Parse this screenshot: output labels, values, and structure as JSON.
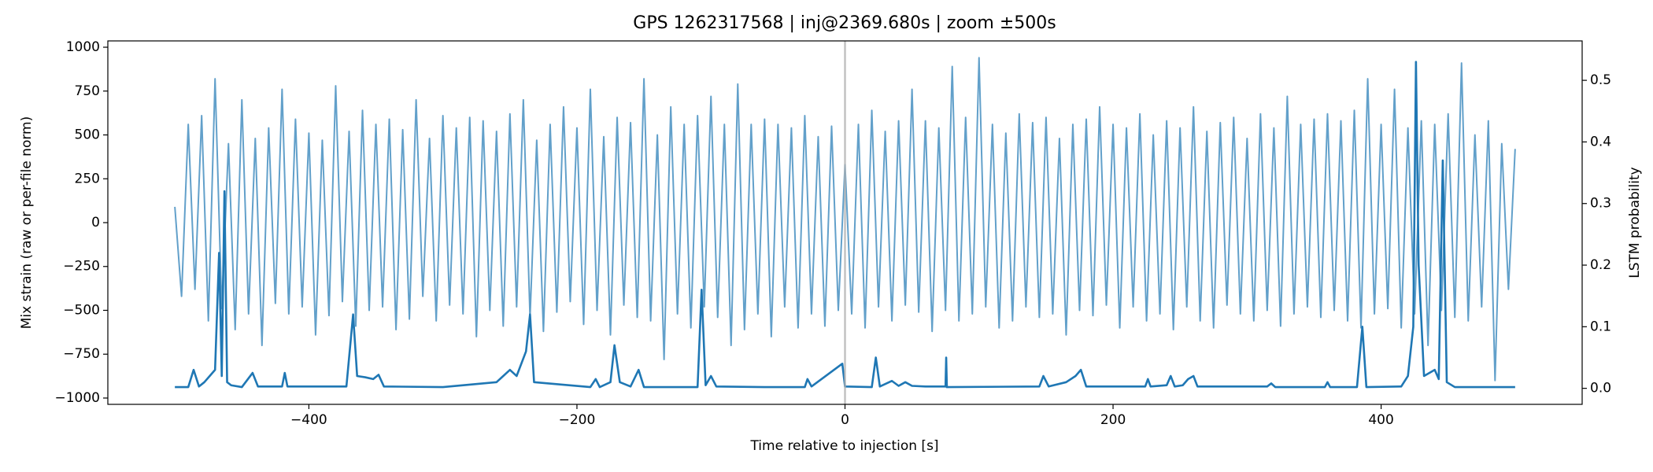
{
  "chart_data": {
    "type": "line",
    "title": "GPS 1262317568 | inj@2369.680s | zoom ±500s",
    "xlabel": "Time relative to injection [s]",
    "ylabel": "Mix strain (raw or per-file norm)",
    "y2label": "LSTM probability",
    "xlim": [
      -550,
      550
    ],
    "xticks": [
      {
        "value": -400,
        "label": "−400"
      },
      {
        "value": -200,
        "label": "−200"
      },
      0,
      200,
      400
    ],
    "ylim": [
      -1036,
      1036
    ],
    "yticks": [
      {
        "value": -1000,
        "label": "−1000"
      },
      {
        "value": -750,
        "label": "−750"
      },
      {
        "value": -500,
        "label": "−500"
      },
      {
        "value": -250,
        "label": "−250"
      },
      0,
      250,
      500,
      750,
      1000
    ],
    "y2lim": [
      -0.026,
      0.564
    ],
    "y2ticks": [
      {
        "value": 0,
        "label": "0.0"
      },
      0.1,
      0.2,
      0.3,
      0.4,
      0.5
    ],
    "vline": 0,
    "vline_color": "#b0b0b0",
    "series": [
      {
        "color": "#62a0ca",
        "x": [
          -500,
          -495,
          -490,
          -485,
          -480,
          -475,
          -470,
          -465,
          -460,
          -455,
          -450,
          -445,
          -440,
          -435,
          -430,
          -425,
          -420,
          -415,
          -410,
          -405,
          -400,
          -395,
          -390,
          -385,
          -380,
          -375,
          -370,
          -365,
          -360,
          -355,
          -350,
          -345,
          -340,
          -335,
          -330,
          -325,
          -320,
          -315,
          -310,
          -305,
          -300,
          -295,
          -290,
          -285,
          -280,
          -275,
          -270,
          -265,
          -260,
          -255,
          -250,
          -245,
          -240,
          -235,
          -230,
          -225,
          -220,
          -215,
          -210,
          -205,
          -200,
          -195,
          -190,
          -185,
          -180,
          -175,
          -170,
          -165,
          -160,
          -155,
          -150,
          -145,
          -140,
          -135,
          -130,
          -125,
          -120,
          -115,
          -110,
          -105,
          -100,
          -95,
          -90,
          -85,
          -80,
          -75,
          -70,
          -65,
          -60,
          -55,
          -50,
          -45,
          -40,
          -35,
          -30,
          -25,
          -20,
          -15,
          -10,
          -5,
          0,
          5,
          10,
          15,
          20,
          25,
          30,
          35,
          40,
          45,
          50,
          55,
          60,
          65,
          70,
          75,
          80,
          85,
          90,
          95,
          100,
          105,
          110,
          115,
          120,
          125,
          130,
          135,
          140,
          145,
          150,
          155,
          160,
          165,
          170,
          175,
          180,
          185,
          190,
          195,
          200,
          205,
          210,
          215,
          220,
          225,
          230,
          235,
          240,
          245,
          250,
          255,
          260,
          265,
          270,
          275,
          280,
          285,
          290,
          295,
          300,
          305,
          310,
          315,
          320,
          325,
          330,
          335,
          340,
          345,
          350,
          355,
          360,
          365,
          370,
          375,
          380,
          385,
          390,
          395,
          400,
          405,
          410,
          415,
          420,
          425,
          430,
          435,
          440,
          445,
          450,
          455,
          460,
          465,
          470,
          475,
          480,
          485,
          490,
          495,
          500
        ],
        "values": [
          90,
          -420,
          560,
          -380,
          610,
          -560,
          820,
          -490,
          450,
          -610,
          700,
          -520,
          480,
          -700,
          540,
          -460,
          760,
          -520,
          590,
          -480,
          510,
          -640,
          470,
          -530,
          780,
          -450,
          520,
          -590,
          640,
          -500,
          560,
          -480,
          590,
          -610,
          530,
          -550,
          700,
          -420,
          480,
          -560,
          610,
          -470,
          540,
          -520,
          600,
          -650,
          580,
          -500,
          520,
          -590,
          620,
          -480,
          700,
          -540,
          470,
          -620,
          560,
          -510,
          660,
          -450,
          540,
          -580,
          760,
          -500,
          490,
          -640,
          600,
          -470,
          570,
          -540,
          820,
          -560,
          500,
          -780,
          660,
          -520,
          560,
          -600,
          610,
          -480,
          720,
          -540,
          560,
          -700,
          790,
          -610,
          560,
          -520,
          590,
          -650,
          560,
          -480,
          540,
          -600,
          610,
          -520,
          490,
          -590,
          550,
          -500,
          330,
          -520,
          560,
          -600,
          640,
          -480,
          520,
          -560,
          580,
          -470,
          760,
          -510,
          580,
          -620,
          540,
          -500,
          890,
          -560,
          600,
          -520,
          940,
          -480,
          560,
          -600,
          510,
          -560,
          620,
          -480,
          570,
          -540,
          600,
          -520,
          480,
          -640,
          560,
          -500,
          590,
          -530,
          660,
          -470,
          560,
          -600,
          540,
          -480,
          620,
          -560,
          500,
          -520,
          580,
          -610,
          540,
          -480,
          660,
          -560,
          520,
          -600,
          570,
          -470,
          600,
          -520,
          480,
          -560,
          620,
          -500,
          540,
          -590,
          720,
          -520,
          560,
          -480,
          590,
          -540,
          620,
          -500,
          580,
          -560,
          640,
          -600,
          820,
          -520,
          560,
          -490,
          760,
          -600,
          540,
          -520,
          580,
          -700,
          560,
          -500,
          620,
          -540,
          910,
          -560,
          500,
          -480,
          580,
          -900,
          450,
          -380,
          420
        ]
      },
      {
        "color": "#1f77b4",
        "axis": "y2",
        "x": [
          -500,
          -490,
          -486,
          -482,
          -478,
          -474,
          -470,
          -467,
          -465,
          -463,
          -461,
          -458,
          -450,
          -442,
          -438,
          -420,
          -418,
          -416,
          -372,
          -367,
          -364,
          -358,
          -352,
          -348,
          -344,
          -300,
          -260,
          -250,
          -245,
          -238,
          -235,
          -232,
          -190,
          -186,
          -183,
          -175,
          -172,
          -168,
          -160,
          -154,
          -150,
          -110,
          -107,
          -104,
          -100,
          -96,
          -60,
          -30,
          -28,
          -25,
          -2,
          0,
          20,
          23,
          26,
          35,
          40,
          45,
          50,
          60,
          75,
          75.5,
          76,
          145,
          148,
          152,
          165,
          172,
          176,
          180,
          224,
          226,
          228,
          240,
          243,
          246,
          252,
          256,
          260,
          263,
          315,
          318,
          321,
          358,
          360,
          362,
          382,
          386,
          389,
          415,
          420,
          424,
          426,
          428,
          432,
          440,
          443,
          446,
          449,
          455,
          500
        ],
        "values": [
          0.002,
          0.002,
          0.03,
          0.003,
          0.01,
          0.02,
          0.03,
          0.22,
          0.02,
          0.32,
          0.01,
          0.005,
          0.002,
          0.025,
          0.003,
          0.003,
          0.025,
          0.003,
          0.003,
          0.12,
          0.02,
          0.018,
          0.015,
          0.022,
          0.003,
          0.002,
          0.01,
          0.03,
          0.02,
          0.06,
          0.12,
          0.01,
          0.002,
          0.015,
          0.002,
          0.01,
          0.07,
          0.01,
          0.003,
          0.03,
          0.002,
          0.002,
          0.16,
          0.005,
          0.02,
          0.003,
          0.002,
          0.002,
          0.015,
          0.003,
          0.04,
          0.003,
          0.002,
          0.05,
          0.003,
          0.012,
          0.004,
          0.01,
          0.004,
          0.003,
          0.003,
          0.05,
          0.002,
          0.003,
          0.02,
          0.003,
          0.01,
          0.02,
          0.03,
          0.003,
          0.003,
          0.015,
          0.003,
          0.005,
          0.02,
          0.003,
          0.005,
          0.015,
          0.02,
          0.003,
          0.003,
          0.008,
          0.002,
          0.002,
          0.01,
          0.002,
          0.002,
          0.1,
          0.002,
          0.003,
          0.02,
          0.1,
          0.53,
          0.2,
          0.02,
          0.03,
          0.015,
          0.37,
          0.01,
          0.002,
          0.002
        ]
      }
    ]
  }
}
